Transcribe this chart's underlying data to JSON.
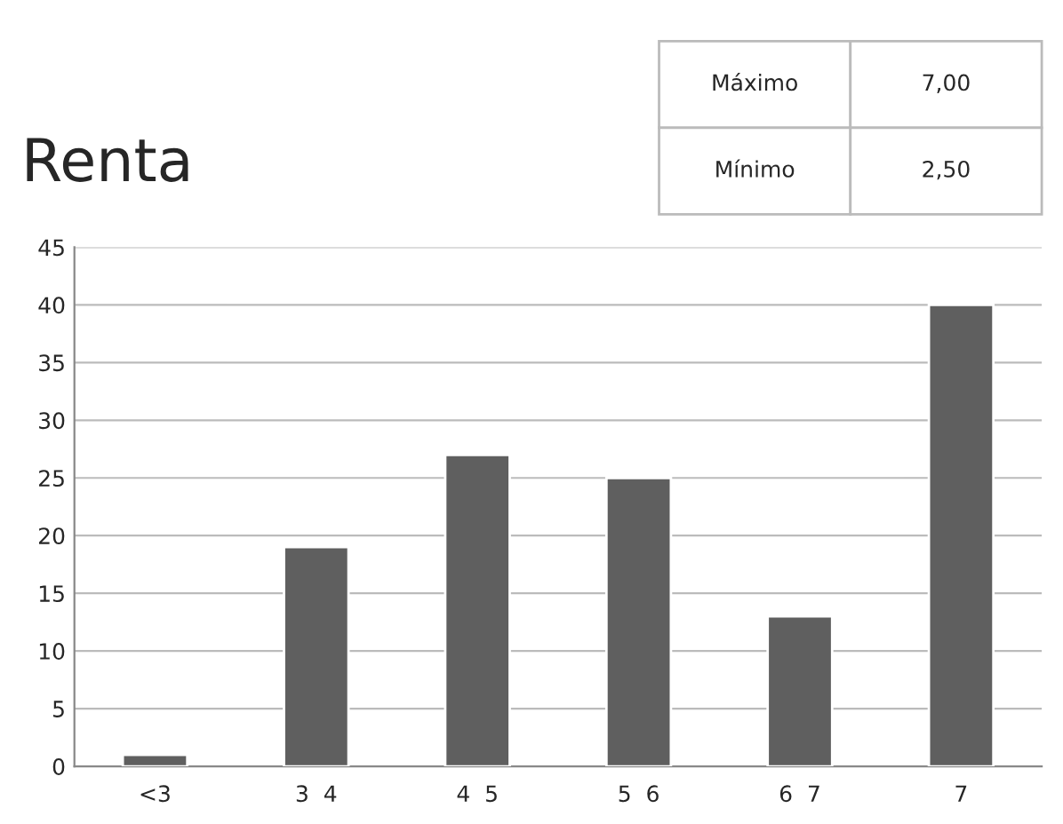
{
  "chart_data": {
    "type": "bar",
    "title": "Renta",
    "categories": [
      "<3",
      "3  4",
      "4  5",
      "5  6",
      "6  7",
      "7"
    ],
    "values": [
      1,
      19,
      27,
      25,
      13,
      40
    ],
    "color": "#5f5f5f",
    "ylim": [
      0,
      45
    ],
    "yticks": [
      0,
      5,
      10,
      15,
      20,
      25,
      30,
      35,
      40,
      45
    ],
    "grid": "y",
    "annotations": [
      "Máximo",
      "7,00",
      "Mínimo",
      "2,50"
    ]
  }
}
